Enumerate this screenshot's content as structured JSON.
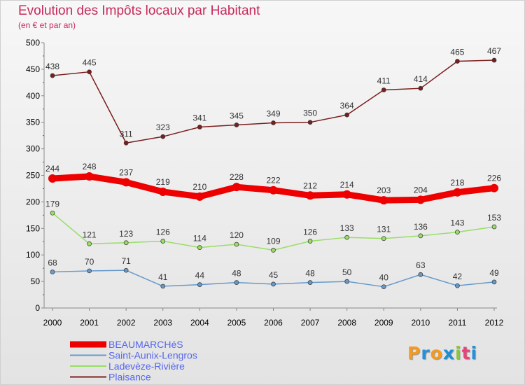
{
  "header": {
    "title": "Evolution des Impôts locaux par Habitant",
    "subtitle": "(en € et par an)"
  },
  "logo": {
    "letters": [
      "P",
      "r",
      "o",
      "x",
      "i",
      "t",
      "i"
    ],
    "colors": [
      "#f59a1f",
      "#2a8fd6",
      "#f59a1f",
      "#1a8fd6",
      "#8cc63f",
      "#e5457a",
      "#2a8fd6"
    ]
  },
  "chart_data": {
    "type": "line",
    "title": "Evolution des Impôts locaux par Habitant",
    "subtitle": "(en € et par an)",
    "xlabel": "",
    "ylabel": "",
    "x": [
      "2000",
      "2001",
      "2002",
      "2003",
      "2004",
      "2005",
      "2006",
      "2007",
      "2008",
      "2009",
      "2010",
      "2011",
      "2012"
    ],
    "yticks": [
      0,
      50,
      100,
      150,
      200,
      250,
      300,
      350,
      400,
      450,
      500
    ],
    "ylim": [
      0,
      500
    ],
    "grid": false,
    "legend_position": "bottom-left",
    "series": [
      {
        "name": "BEAUMARCHéS",
        "color": "#ee0000",
        "thick": true,
        "values": [
          244,
          248,
          237,
          219,
          210,
          228,
          222,
          212,
          214,
          203,
          204,
          218,
          226
        ]
      },
      {
        "name": "Saint-Aunix-Lengros",
        "color": "#6699cc",
        "thick": false,
        "values": [
          68,
          70,
          71,
          41,
          44,
          48,
          45,
          48,
          50,
          40,
          63,
          42,
          49
        ]
      },
      {
        "name": "Ladevèze-Rivière",
        "color": "#99dd66",
        "thick": false,
        "values": [
          179,
          121,
          123,
          126,
          114,
          120,
          109,
          126,
          133,
          131,
          136,
          143,
          153
        ]
      },
      {
        "name": "Plaisance",
        "color": "#7a1e1e",
        "thick": false,
        "values": [
          438,
          445,
          311,
          323,
          341,
          345,
          349,
          350,
          364,
          411,
          414,
          465,
          467
        ]
      }
    ]
  }
}
